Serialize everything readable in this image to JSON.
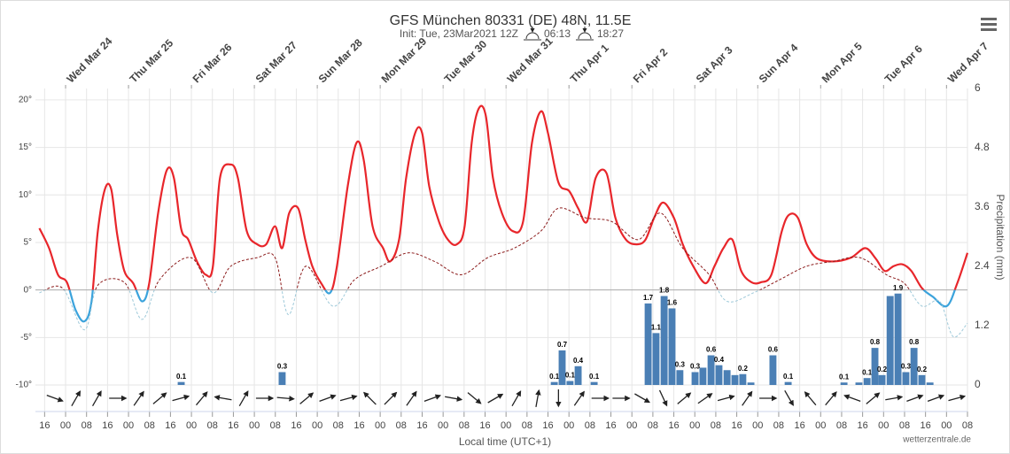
{
  "chart_data": {
    "type": "meteogram",
    "title": "GFS München 80331 (DE) 48N, 11.5E",
    "subtitle": "Init: Tue, 23Mar2021 12Z",
    "sunrise": "06:13",
    "sunset": "18:27",
    "xlabel": "Local time (UTC+1)",
    "y2label": "Precipitation (mm)",
    "credit": "wetterzentrale.de",
    "xlim": [
      -3.5,
      352
    ],
    "ylim": [
      -10,
      21.2
    ],
    "y2lim": [
      0,
      6
    ],
    "yticks": [
      {
        "value": 20,
        "label": "20°"
      },
      {
        "value": 15,
        "label": "15°"
      },
      {
        "value": 10,
        "label": "10°"
      },
      {
        "value": 5,
        "label": "5°"
      },
      {
        "value": 0,
        "label": "0°"
      },
      {
        "value": -5,
        "label": "-5°"
      },
      {
        "value": -10,
        "label": "-10°"
      }
    ],
    "y2ticks": [
      0,
      1.2,
      2.4,
      3.6,
      4.8,
      6
    ],
    "grid": true,
    "xticks": [
      {
        "value": 0,
        "label": "16"
      },
      {
        "value": 8,
        "label": "00"
      },
      {
        "value": 16,
        "label": "08"
      },
      {
        "value": 24,
        "label": "16"
      },
      {
        "value": 32,
        "label": "00"
      },
      {
        "value": 40,
        "label": "08"
      },
      {
        "value": 48,
        "label": "16"
      },
      {
        "value": 56,
        "label": "00"
      },
      {
        "value": 64,
        "label": "08"
      },
      {
        "value": 72,
        "label": "16"
      },
      {
        "value": 80,
        "label": "00"
      },
      {
        "value": 88,
        "label": "08"
      },
      {
        "value": 96,
        "label": "16"
      },
      {
        "value": 104,
        "label": "00"
      },
      {
        "value": 112,
        "label": "08"
      },
      {
        "value": 120,
        "label": "16"
      },
      {
        "value": 128,
        "label": "00"
      },
      {
        "value": 136,
        "label": "08"
      },
      {
        "value": 144,
        "label": "16"
      },
      {
        "value": 152,
        "label": "00"
      },
      {
        "value": 160,
        "label": "08"
      },
      {
        "value": 168,
        "label": "16"
      },
      {
        "value": 176,
        "label": "00"
      },
      {
        "value": 184,
        "label": "08"
      },
      {
        "value": 192,
        "label": "16"
      },
      {
        "value": 200,
        "label": "00"
      },
      {
        "value": 208,
        "label": "08"
      },
      {
        "value": 216,
        "label": "16"
      },
      {
        "value": 224,
        "label": "00"
      },
      {
        "value": 232,
        "label": "08"
      },
      {
        "value": 240,
        "label": "16"
      },
      {
        "value": 248,
        "label": "00"
      },
      {
        "value": 256,
        "label": "08"
      },
      {
        "value": 264,
        "label": "16"
      },
      {
        "value": 272,
        "label": "00"
      },
      {
        "value": 280,
        "label": "08"
      },
      {
        "value": 288,
        "label": "16"
      },
      {
        "value": 296,
        "label": "00"
      },
      {
        "value": 304,
        "label": "08"
      },
      {
        "value": 312,
        "label": "16"
      },
      {
        "value": 320,
        "label": "00"
      },
      {
        "value": 328,
        "label": "08"
      },
      {
        "value": 336,
        "label": "16"
      },
      {
        "value": 344,
        "label": "00"
      },
      {
        "value": 352,
        "label": "08"
      }
    ],
    "x2ticks": [
      {
        "value": 8,
        "label": "Wed Mar 24"
      },
      {
        "value": 32,
        "label": "Thu Mar 25"
      },
      {
        "value": 56,
        "label": "Fri Mar 26"
      },
      {
        "value": 80,
        "label": "Sat Mar 27"
      },
      {
        "value": 104,
        "label": "Sun Mar 28"
      },
      {
        "value": 128,
        "label": "Mon Mar 29"
      },
      {
        "value": 152,
        "label": "Tue Mar 30"
      },
      {
        "value": 176,
        "label": "Wed Mar 31"
      },
      {
        "value": 200,
        "label": "Thu Apr 1"
      },
      {
        "value": 224,
        "label": "Fri Apr 2"
      },
      {
        "value": 248,
        "label": "Sat Apr 3"
      },
      {
        "value": 272,
        "label": "Sun Apr 4"
      },
      {
        "value": 296,
        "label": "Mon Apr 5"
      },
      {
        "value": 320,
        "label": "Tue Apr 6"
      },
      {
        "value": 344,
        "label": "Wed Apr 7"
      }
    ],
    "series": [
      {
        "kind": "line",
        "color": "#e8262b",
        "below_zero_color": "#3ba3dc",
        "dashed": false,
        "x": [
          -2.0,
          1.7,
          5.1,
          8.5,
          11.8,
          15.2,
          17.9,
          20.3,
          23.0,
          25.4,
          27.7,
          30.4,
          33.8,
          37.2,
          39.9,
          43.3,
          46.6,
          49.3,
          52.1,
          54.8,
          58.1,
          61.5,
          64.2,
          66.9,
          71.0,
          73.7,
          77.1,
          81.1,
          84.5,
          87.9,
          90.6,
          93.3,
          96.7,
          99.4,
          102.1,
          105.5,
          108.9,
          111.5,
          115.6,
          119.0,
          121.7,
          125.1,
          129.1,
          131.8,
          135.2,
          137.9,
          141.3,
          144.0,
          146.7,
          150.4,
          153.8,
          157.2,
          160.2,
          162.9,
          165.6,
          168.3,
          171.0,
          174.4,
          178.5,
          182.5,
          185.9,
          189.3,
          192.0,
          196.0,
          200.1,
          203.5,
          206.9,
          210.2,
          214.3,
          217.7,
          221.7,
          225.8,
          229.2,
          232.5,
          235.9,
          240.0,
          243.4,
          247.4,
          252.1,
          255.5,
          258.9,
          262.3,
          265.7,
          269.7,
          273.1,
          277.2,
          281.2,
          283.9,
          287.3,
          290.7,
          294.7,
          300.8,
          307.6,
          313.0,
          317.0,
          320.4,
          323.8,
          327.2,
          330.6,
          334.6,
          338.7,
          344.1,
          348.1,
          352.0
        ],
        "values": [
          6.5,
          4.4,
          1.6,
          0.8,
          -2.1,
          -3.3,
          -1.2,
          6.2,
          10.6,
          10.6,
          5.8,
          2,
          0.7,
          -1.2,
          0.7,
          8.1,
          12.6,
          11.8,
          6.4,
          5.3,
          3,
          1.6,
          2.5,
          11.8,
          13.2,
          11.8,
          6.2,
          4.8,
          4.8,
          6.7,
          4.4,
          8.1,
          8.6,
          5.3,
          2.5,
          0.7,
          -0.3,
          2.5,
          10.9,
          15.5,
          13.7,
          6.7,
          4.4,
          3,
          5.3,
          11.8,
          16.5,
          16.5,
          10.9,
          7.2,
          5.3,
          4.8,
          6.7,
          15.5,
          19.1,
          18.3,
          11.8,
          8.1,
          6.2,
          7.2,
          15.5,
          18.8,
          16.5,
          11.3,
          10.4,
          8.6,
          7.2,
          11.8,
          12.3,
          7.6,
          5.3,
          4.8,
          5.3,
          7.6,
          9.2,
          7.6,
          4.8,
          2.5,
          0.7,
          2.5,
          4.4,
          5.3,
          2,
          0.8,
          0.8,
          1.6,
          6.2,
          7.9,
          7.6,
          4.8,
          3.3,
          3,
          3.4,
          4.4,
          3.3,
          2,
          2.5,
          2.7,
          2,
          0.2,
          -0.7,
          -1.7,
          0.7,
          3.9
        ]
      },
      {
        "kind": "line",
        "color": "#8b1a1a",
        "below_zero_color": "#9ec9d9",
        "dashed": true,
        "x": [
          -2.0,
          6.8,
          15.2,
          20.3,
          30.4,
          37.2,
          43.9,
          55.8,
          64.2,
          71.0,
          81.1,
          87.9,
          93.0,
          99.7,
          109.9,
          118.3,
          128.4,
          138.6,
          148.7,
          158.9,
          169.0,
          179.1,
          189.3,
          196.0,
          206.2,
          216.3,
          226.5,
          234.9,
          243.4,
          253.5,
          260.3,
          270.4,
          280.5,
          290.7,
          300.8,
          311.0,
          321.1,
          327.9,
          334.6,
          341.4,
          346.5,
          352.0
        ],
        "values": [
          -0.3,
          0.2,
          -4.2,
          0.5,
          0.8,
          -3.1,
          1.1,
          3.4,
          -0.3,
          2.5,
          3.4,
          3.4,
          -2.6,
          2.5,
          -1.7,
          1.1,
          2.5,
          3.9,
          3,
          1.6,
          3.4,
          4.4,
          6.2,
          8.6,
          7.6,
          7.2,
          5.3,
          8.1,
          4.4,
          1.6,
          -1.2,
          -0.3,
          1.1,
          2.5,
          3,
          3.4,
          1.6,
          0.7,
          -1.7,
          -1.2,
          -4.9,
          -3.5
        ]
      },
      {
        "kind": "bar",
        "axis": "y2",
        "color": "#4a7fb5",
        "x": [
          52.1,
          90.6,
          194.4,
          197.4,
          200.4,
          203.5,
          209.6,
          230.2,
          233.2,
          236.3,
          239.3,
          242.3,
          248.1,
          251.1,
          254.2,
          257.2,
          260.3,
          263.3,
          266.3,
          269.4,
          277.8,
          283.6,
          304.9,
          310.6,
          313.7,
          316.7,
          319.4,
          322.5,
          325.5,
          328.5,
          331.6,
          334.6,
          337.7
        ],
        "values": [
          0.06,
          0.26,
          0.06,
          0.7,
          0.08,
          0.38,
          0.06,
          1.65,
          1.05,
          1.8,
          1.55,
          0.3,
          0.26,
          0.35,
          0.6,
          0.4,
          0.3,
          0.2,
          0.22,
          0.05,
          0.6,
          0.06,
          0.05,
          0.05,
          0.14,
          0.75,
          0.2,
          1.8,
          1.85,
          0.26,
          0.75,
          0.2,
          0.05
        ],
        "value_labels": [
          "0.1",
          "0.3",
          "0.1",
          "0.7",
          "0.1",
          "0.4",
          "0.1",
          "1.7",
          "1.1",
          "1.8",
          "1.6",
          "0.3",
          "0.3",
          null,
          "0.6",
          "0.4",
          null,
          null,
          "0.2",
          null,
          "0.6",
          "0.1",
          "0.1",
          null,
          "0.1",
          "0.8",
          "0.2",
          null,
          "1.9",
          "0.3",
          "0.8",
          "0.2",
          null
        ]
      }
    ],
    "wind_arrows": [
      20,
      -60,
      -60,
      0,
      -55,
      -40,
      -15,
      -50,
      190,
      -60,
      0,
      5,
      -40,
      -20,
      -15,
      225,
      -45,
      -55,
      -20,
      10,
      40,
      -30,
      -60,
      -80,
      90,
      -55,
      0,
      0,
      30,
      65,
      -40,
      -35,
      -15,
      -55,
      0,
      60,
      -130,
      -50,
      200,
      -40,
      -10,
      -20,
      -20,
      -15
    ]
  }
}
